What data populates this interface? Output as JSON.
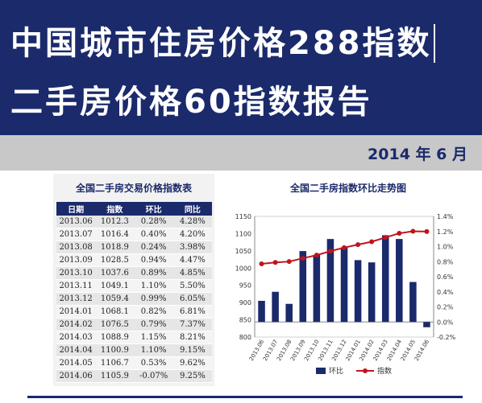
{
  "header": {
    "title_line1": "中国城市住房价格288指数",
    "title_line2": "二手房价格60指数报告",
    "date": "2014 年 6 月"
  },
  "table": {
    "title": "全国二手房交易价格指数表",
    "headers": [
      "日期",
      "指数",
      "环比",
      "同比"
    ],
    "rows": [
      [
        "2013.06",
        "1012.3",
        "0.28%",
        "4.28%"
      ],
      [
        "2013.07",
        "1016.4",
        "0.40%",
        "4.20%"
      ],
      [
        "2013.08",
        "1018.9",
        "0.24%",
        "3.98%"
      ],
      [
        "2013.09",
        "1028.5",
        "0.94%",
        "4.47%"
      ],
      [
        "2013.10",
        "1037.6",
        "0.89%",
        "4.85%"
      ],
      [
        "2013.11",
        "1049.1",
        "1.10%",
        "5.50%"
      ],
      [
        "2013.12",
        "1059.4",
        "0.99%",
        "6.05%"
      ],
      [
        "2014.01",
        "1068.1",
        "0.82%",
        "6.81%"
      ],
      [
        "2014.02",
        "1076.5",
        "0.79%",
        "7.37%"
      ],
      [
        "2014.03",
        "1088.9",
        "1.15%",
        "8.21%"
      ],
      [
        "2014.04",
        "1100.9",
        "1.10%",
        "9.15%"
      ],
      [
        "2014.05",
        "1106.7",
        "0.53%",
        "9.62%"
      ],
      [
        "2014.06",
        "1105.9",
        "-0.07%",
        "9.25%"
      ]
    ]
  },
  "chart_data": {
    "type": "bar",
    "title": "全国二手房指数环比走势图",
    "categories": [
      "2013.06",
      "2013.07",
      "2013.08",
      "2013.09",
      "2013.10",
      "2013.11",
      "2013.12",
      "2014.01",
      "2014.02",
      "2014.03",
      "2014.04",
      "2014.05",
      "2014.06"
    ],
    "series": [
      {
        "name": "环比",
        "type": "bar",
        "axis": "right",
        "color": "#1b2a6b",
        "values": [
          0.28,
          0.4,
          0.24,
          0.94,
          0.89,
          1.1,
          0.99,
          0.82,
          0.79,
          1.15,
          1.1,
          0.53,
          -0.07
        ]
      },
      {
        "name": "指数",
        "type": "line",
        "axis": "left",
        "color": "#c0141c",
        "values": [
          1012.3,
          1016.4,
          1018.9,
          1028.5,
          1037.6,
          1049.1,
          1059.4,
          1068.1,
          1076.5,
          1088.9,
          1100.9,
          1106.7,
          1105.9
        ]
      }
    ],
    "left_axis": {
      "min": 800,
      "max": 1150,
      "step": 50,
      "ticks": [
        "800",
        "850",
        "900",
        "950",
        "1000",
        "1050",
        "1100",
        "1150"
      ]
    },
    "right_axis": {
      "min": -0.2,
      "max": 1.4,
      "step": 0.2,
      "ticks": [
        "-0.2%",
        "0.0%",
        "0.2%",
        "0.4%",
        "0.6%",
        "0.8%",
        "1.0%",
        "1.2%",
        "1.4%"
      ]
    },
    "legend_position": "bottom",
    "grid": false
  }
}
